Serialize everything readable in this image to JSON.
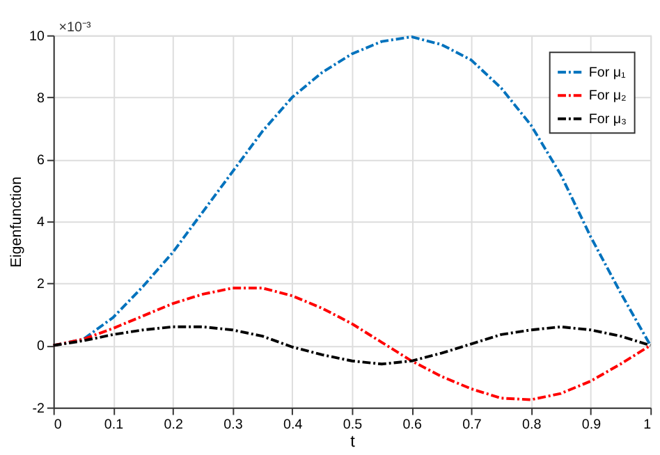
{
  "chart_data": {
    "type": "line",
    "xlabel": "t",
    "ylabel": "Eigenfunction",
    "x": [
      0,
      0.05,
      0.1,
      0.15,
      0.2,
      0.25,
      0.3,
      0.35,
      0.4,
      0.45,
      0.5,
      0.55,
      0.6,
      0.65,
      0.7,
      0.75,
      0.8,
      0.85,
      0.9,
      0.95,
      1
    ],
    "series": [
      {
        "name": "For μ₁",
        "color": "#0072bd",
        "values": [
          0,
          0.2,
          0.9,
          1.9,
          3.0,
          4.3,
          5.6,
          6.9,
          8.0,
          8.8,
          9.4,
          9.8,
          9.95,
          9.7,
          9.2,
          8.3,
          7.1,
          5.5,
          3.5,
          1.7,
          0
        ]
      },
      {
        "name": "For μ₂",
        "color": "#ff0000",
        "values": [
          0,
          0.2,
          0.55,
          0.95,
          1.35,
          1.65,
          1.85,
          1.85,
          1.6,
          1.2,
          0.7,
          0.1,
          -0.5,
          -1.0,
          -1.4,
          -1.7,
          -1.75,
          -1.55,
          -1.15,
          -0.6,
          0
        ]
      },
      {
        "name": "For μ₃",
        "color": "#000000",
        "values": [
          0,
          0.15,
          0.35,
          0.5,
          0.6,
          0.6,
          0.5,
          0.3,
          -0.05,
          -0.3,
          -0.5,
          -0.6,
          -0.5,
          -0.25,
          0.05,
          0.35,
          0.5,
          0.6,
          0.5,
          0.3,
          0
        ]
      }
    ],
    "xlim": [
      0,
      1
    ],
    "xticks": [
      0,
      0.1,
      0.2,
      0.3,
      0.4,
      0.5,
      0.6,
      0.7,
      0.8,
      0.9,
      1
    ],
    "ylim": [
      -2,
      10
    ],
    "yticks": [
      -2,
      0,
      2,
      4,
      6,
      8,
      10
    ],
    "annotations": [
      "×10⁻³"
    ],
    "grid": true,
    "legend": "top right",
    "line_style": "dashed",
    "marker": "none"
  }
}
